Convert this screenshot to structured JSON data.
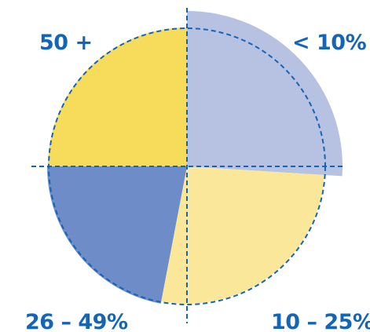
{
  "chart_data": {
    "type": "pie",
    "title": "",
    "slices": [
      {
        "label": "< 10%",
        "value": 26,
        "color": "#b7c1e2"
      },
      {
        "label": "10 – 25%",
        "value": 27,
        "color": "#fbe799"
      },
      {
        "label": "26 – 49%",
        "value": 22,
        "color": "#6d8cc8"
      },
      {
        "label": "50 +",
        "value": 25,
        "color": "#f7dc5c"
      }
    ],
    "reference_circle": "dashed circle with dashed quarter-dividing lines (equal 25% quadrants)",
    "accent_color": "#1565b7"
  }
}
